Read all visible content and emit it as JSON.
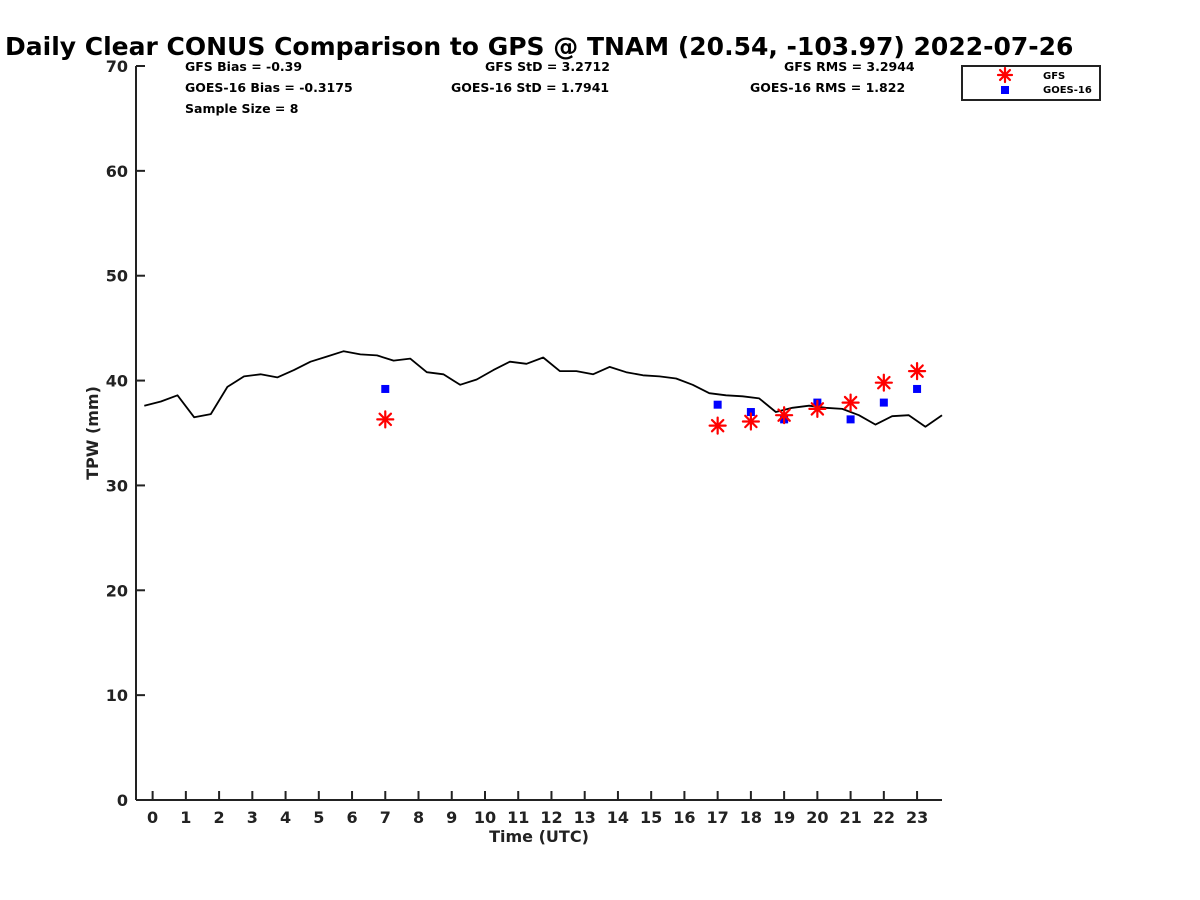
{
  "chart_data": {
    "type": "scatter",
    "title": "Daily Clear CONUS Comparison to GPS @ TNAM (20.54, -103.97) 2022-07-26",
    "xlabel": "Time (UTC)",
    "ylabel": "TPW (mm)",
    "xlim": [
      -0.5,
      23.75
    ],
    "ylim": [
      0,
      70
    ],
    "xticks": [
      "0",
      "1",
      "2",
      "3",
      "4",
      "5",
      "6",
      "7",
      "8",
      "9",
      "10",
      "11",
      "12",
      "13",
      "14",
      "15",
      "16",
      "17",
      "18",
      "19",
      "20",
      "21",
      "22",
      "23"
    ],
    "yticks": [
      "0",
      "10",
      "20",
      "30",
      "40",
      "50",
      "60",
      "70"
    ],
    "grid": false,
    "legend_position": "top-right",
    "stats": [
      {
        "label": "GFS Bias = -0.39"
      },
      {
        "label": "GFS StD = 3.2712"
      },
      {
        "label": "GFS RMS = 3.2944"
      },
      {
        "label": "GOES-16 Bias = -0.3175"
      },
      {
        "label": "GOES-16 StD = 1.7941"
      },
      {
        "label": "GOES-16 RMS = 1.822"
      },
      {
        "label": "Sample Size = 8"
      }
    ],
    "gps_line": {
      "color": "#000000",
      "x": [
        -0.25,
        0.25,
        0.75,
        1.25,
        1.75,
        2.25,
        2.75,
        3.25,
        3.75,
        4.25,
        4.75,
        5.25,
        5.75,
        6.25,
        6.75,
        7.25,
        7.75,
        8.25,
        8.75,
        9.25,
        9.75,
        10.25,
        10.75,
        11.25,
        11.75,
        12.25,
        12.75,
        13.25,
        13.75,
        14.25,
        14.75,
        15.25,
        15.75,
        16.25,
        16.75,
        17.25,
        17.75,
        18.25,
        18.75,
        19.25,
        19.75,
        20.25,
        20.75,
        21.25,
        21.75,
        22.25,
        22.75,
        23.25,
        23.75
      ],
      "y": [
        37.6,
        38.0,
        38.6,
        36.5,
        36.8,
        39.4,
        40.4,
        40.6,
        40.3,
        41.0,
        41.8,
        42.3,
        42.8,
        42.5,
        42.4,
        41.9,
        42.1,
        40.8,
        40.6,
        39.6,
        40.1,
        41.0,
        41.8,
        41.6,
        42.2,
        40.9,
        40.9,
        40.6,
        41.3,
        40.8,
        40.5,
        40.4,
        40.2,
        39.6,
        38.8,
        38.6,
        38.5,
        38.3,
        37.0,
        37.4,
        37.6,
        37.4,
        37.3,
        36.7,
        35.8,
        36.6,
        36.7,
        35.6,
        36.7
      ]
    },
    "series": [
      {
        "name": "GFS",
        "marker": "asterisk",
        "color": "#ff0000",
        "x": [
          7,
          17,
          18,
          19,
          20,
          21,
          22,
          23
        ],
        "y": [
          36.3,
          35.7,
          36.1,
          36.7,
          37.3,
          37.9,
          39.8,
          40.9
        ]
      },
      {
        "name": "GOES-16",
        "marker": "square",
        "color": "#0000ff",
        "x": [
          7,
          17,
          18,
          19,
          20,
          21,
          22,
          23
        ],
        "y": [
          39.2,
          37.7,
          37.0,
          36.3,
          37.9,
          36.3,
          37.9,
          39.2
        ]
      }
    ]
  }
}
